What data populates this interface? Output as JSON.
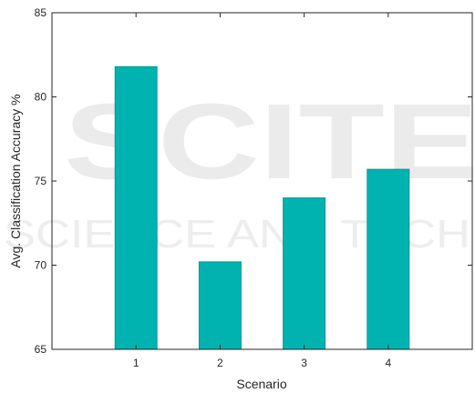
{
  "chart_data": {
    "type": "bar",
    "categories": [
      "1",
      "2",
      "3",
      "4"
    ],
    "values": [
      81.8,
      70.2,
      74.0,
      75.7
    ],
    "title": "",
    "xlabel": "Scenario",
    "ylabel": "Avg. Classification Accuracy %",
    "ylim": [
      65,
      85
    ],
    "yticks": [
      65,
      70,
      75,
      80,
      85
    ],
    "bar_color": "#00b3b0",
    "bar_edge_color": "#008a86",
    "grid": false,
    "legend": "none"
  },
  "watermark": {
    "main": "SCITE",
    "sub": "SCIENCE AND TECH"
  }
}
